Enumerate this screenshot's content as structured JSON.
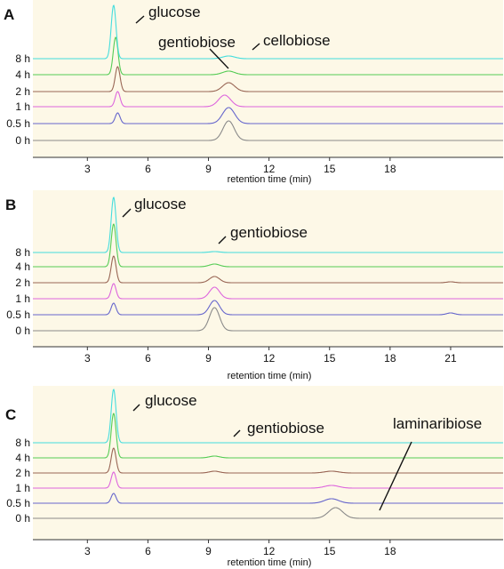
{
  "chart_data": [
    {
      "type": "line",
      "panel_label": "A",
      "xlabel": "retention time (min)",
      "ylabel": "",
      "xlim": [
        0.3,
        23.6
      ],
      "xticks": [
        3,
        6,
        9,
        12,
        15,
        18
      ],
      "series": [
        {
          "name": "0 h",
          "color": "#8a8a8a",
          "peaks": [
            {
              "rt": 10.0,
              "height": 22,
              "width": 0.28
            }
          ]
        },
        {
          "name": "0.5 h",
          "color": "#6666cc",
          "peaks": [
            {
              "rt": 4.5,
              "height": 12,
              "width": 0.12
            },
            {
              "rt": 10.0,
              "height": 18,
              "width": 0.3
            }
          ]
        },
        {
          "name": "1 h",
          "color": "#dd66dd",
          "peaks": [
            {
              "rt": 4.5,
              "height": 17,
              "width": 0.12
            },
            {
              "rt": 9.8,
              "height": 13,
              "width": 0.3
            }
          ]
        },
        {
          "name": "2 h",
          "color": "#996655",
          "peaks": [
            {
              "rt": 4.5,
              "height": 28,
              "width": 0.12
            },
            {
              "rt": 10.0,
              "height": 10,
              "width": 0.3
            }
          ]
        },
        {
          "name": "4 h",
          "color": "#55cc55",
          "peaks": [
            {
              "rt": 4.4,
              "height": 42,
              "width": 0.12
            },
            {
              "rt": 10.0,
              "height": 4,
              "width": 0.3
            }
          ]
        },
        {
          "name": "8 h",
          "color": "#44dddd",
          "peaks": [
            {
              "rt": 4.3,
              "height": 60,
              "width": 0.12
            },
            {
              "rt": 10.0,
              "height": 3,
              "width": 0.3
            }
          ]
        }
      ],
      "annotations": [
        {
          "text": "glucose",
          "x": 4.4,
          "row": "8 h"
        },
        {
          "text": "gentiobiose",
          "x": 9.4,
          "row": "8 h"
        },
        {
          "text": "cellobiose",
          "x": 10.1,
          "row": "8 h"
        }
      ]
    },
    {
      "type": "line",
      "panel_label": "B",
      "xlabel": "retention time (min)",
      "ylabel": "",
      "xlim": [
        0.3,
        23.6
      ],
      "xticks": [
        3,
        6,
        9,
        12,
        15,
        18,
        21
      ],
      "series": [
        {
          "name": "0 h",
          "color": "#8a8a8a",
          "peaks": [
            {
              "rt": 9.3,
              "height": 26,
              "width": 0.25
            }
          ]
        },
        {
          "name": "0.5 h",
          "color": "#6666cc",
          "peaks": [
            {
              "rt": 4.3,
              "height": 13,
              "width": 0.12
            },
            {
              "rt": 9.3,
              "height": 16,
              "width": 0.25
            },
            {
              "rt": 21.0,
              "height": 2,
              "width": 0.2
            }
          ]
        },
        {
          "name": "1 h",
          "color": "#dd66dd",
          "peaks": [
            {
              "rt": 4.3,
              "height": 17,
              "width": 0.12
            },
            {
              "rt": 9.3,
              "height": 13,
              "width": 0.25
            }
          ]
        },
        {
          "name": "2 h",
          "color": "#996655",
          "peaks": [
            {
              "rt": 4.3,
              "height": 30,
              "width": 0.12
            },
            {
              "rt": 9.3,
              "height": 7,
              "width": 0.25
            },
            {
              "rt": 21.0,
              "height": 1,
              "width": 0.2
            }
          ]
        },
        {
          "name": "4 h",
          "color": "#55cc55",
          "peaks": [
            {
              "rt": 4.3,
              "height": 48,
              "width": 0.12
            },
            {
              "rt": 9.3,
              "height": 3,
              "width": 0.25
            }
          ]
        },
        {
          "name": "8 h",
          "color": "#44dddd",
          "peaks": [
            {
              "rt": 4.3,
              "height": 62,
              "width": 0.12
            },
            {
              "rt": 9.3,
              "height": 1,
              "width": 0.25
            }
          ]
        }
      ],
      "annotations": [
        {
          "text": "glucose",
          "x": 4.3,
          "row": "8 h"
        },
        {
          "text": "gentiobiose",
          "x": 9.3,
          "row": "8 h"
        }
      ]
    },
    {
      "type": "line",
      "panel_label": "C",
      "xlabel": "retention time (min)",
      "ylabel": "",
      "xlim": [
        0.3,
        23.6
      ],
      "xticks": [
        3,
        6,
        9,
        12,
        15,
        18
      ],
      "series": [
        {
          "name": "0 h",
          "color": "#8a8a8a",
          "peaks": [
            {
              "rt": 15.3,
              "height": 12,
              "width": 0.35
            }
          ]
        },
        {
          "name": "0.5 h",
          "color": "#6666cc",
          "peaks": [
            {
              "rt": 4.3,
              "height": 11,
              "width": 0.12
            },
            {
              "rt": 15.1,
              "height": 5,
              "width": 0.35
            }
          ]
        },
        {
          "name": "1 h",
          "color": "#dd66dd",
          "peaks": [
            {
              "rt": 4.3,
              "height": 18,
              "width": 0.12
            },
            {
              "rt": 15.1,
              "height": 3,
              "width": 0.35
            }
          ]
        },
        {
          "name": "2 h",
          "color": "#996655",
          "peaks": [
            {
              "rt": 4.3,
              "height": 28,
              "width": 0.12
            },
            {
              "rt": 9.3,
              "height": 2,
              "width": 0.25
            },
            {
              "rt": 15.1,
              "height": 2,
              "width": 0.35
            }
          ]
        },
        {
          "name": "4 h",
          "color": "#55cc55",
          "peaks": [
            {
              "rt": 4.3,
              "height": 50,
              "width": 0.12
            },
            {
              "rt": 9.3,
              "height": 2,
              "width": 0.25
            }
          ]
        },
        {
          "name": "8 h",
          "color": "#44dddd",
          "peaks": [
            {
              "rt": 4.3,
              "height": 60,
              "width": 0.12
            }
          ]
        }
      ],
      "annotations": [
        {
          "text": "glucose",
          "x": 4.3,
          "row": "8 h"
        },
        {
          "text": "gentiobiose",
          "x": 9.3,
          "row": "8 h"
        },
        {
          "text": "laminaribiose",
          "x": 15.3,
          "row": "0 h"
        }
      ]
    }
  ]
}
